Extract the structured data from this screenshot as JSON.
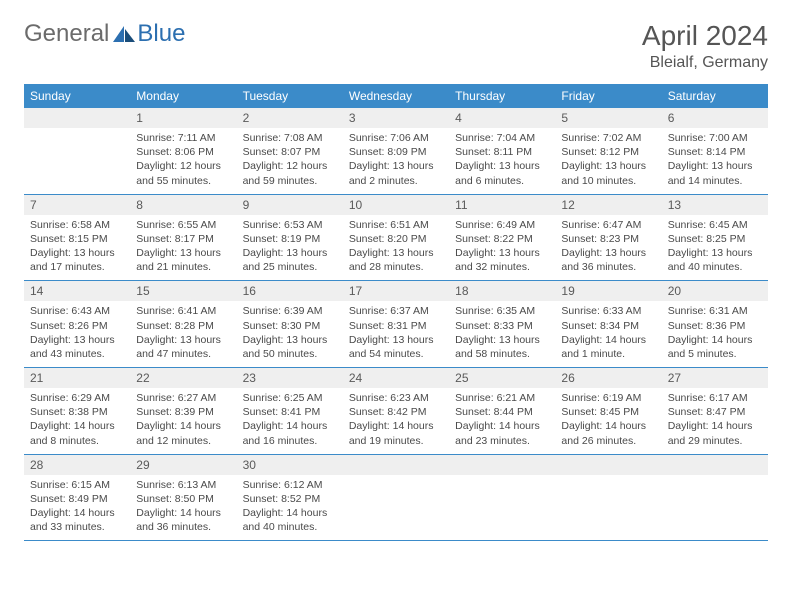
{
  "brand": {
    "general": "General",
    "blue": "Blue"
  },
  "title": "April 2024",
  "location": "Bleialf, Germany",
  "colors": {
    "header_bg": "#3b8bc9",
    "header_text": "#ffffff",
    "daynum_bg": "#efefef",
    "text": "#4a4a4a",
    "border": "#3b8bc9",
    "logo_accent": "#2c6fb0"
  },
  "day_headers": [
    "Sunday",
    "Monday",
    "Tuesday",
    "Wednesday",
    "Thursday",
    "Friday",
    "Saturday"
  ],
  "weeks": [
    [
      {
        "num": "",
        "sunrise": "",
        "sunset": "",
        "daylight": ""
      },
      {
        "num": "1",
        "sunrise": "Sunrise: 7:11 AM",
        "sunset": "Sunset: 8:06 PM",
        "daylight": "Daylight: 12 hours and 55 minutes."
      },
      {
        "num": "2",
        "sunrise": "Sunrise: 7:08 AM",
        "sunset": "Sunset: 8:07 PM",
        "daylight": "Daylight: 12 hours and 59 minutes."
      },
      {
        "num": "3",
        "sunrise": "Sunrise: 7:06 AM",
        "sunset": "Sunset: 8:09 PM",
        "daylight": "Daylight: 13 hours and 2 minutes."
      },
      {
        "num": "4",
        "sunrise": "Sunrise: 7:04 AM",
        "sunset": "Sunset: 8:11 PM",
        "daylight": "Daylight: 13 hours and 6 minutes."
      },
      {
        "num": "5",
        "sunrise": "Sunrise: 7:02 AM",
        "sunset": "Sunset: 8:12 PM",
        "daylight": "Daylight: 13 hours and 10 minutes."
      },
      {
        "num": "6",
        "sunrise": "Sunrise: 7:00 AM",
        "sunset": "Sunset: 8:14 PM",
        "daylight": "Daylight: 13 hours and 14 minutes."
      }
    ],
    [
      {
        "num": "7",
        "sunrise": "Sunrise: 6:58 AM",
        "sunset": "Sunset: 8:15 PM",
        "daylight": "Daylight: 13 hours and 17 minutes."
      },
      {
        "num": "8",
        "sunrise": "Sunrise: 6:55 AM",
        "sunset": "Sunset: 8:17 PM",
        "daylight": "Daylight: 13 hours and 21 minutes."
      },
      {
        "num": "9",
        "sunrise": "Sunrise: 6:53 AM",
        "sunset": "Sunset: 8:19 PM",
        "daylight": "Daylight: 13 hours and 25 minutes."
      },
      {
        "num": "10",
        "sunrise": "Sunrise: 6:51 AM",
        "sunset": "Sunset: 8:20 PM",
        "daylight": "Daylight: 13 hours and 28 minutes."
      },
      {
        "num": "11",
        "sunrise": "Sunrise: 6:49 AM",
        "sunset": "Sunset: 8:22 PM",
        "daylight": "Daylight: 13 hours and 32 minutes."
      },
      {
        "num": "12",
        "sunrise": "Sunrise: 6:47 AM",
        "sunset": "Sunset: 8:23 PM",
        "daylight": "Daylight: 13 hours and 36 minutes."
      },
      {
        "num": "13",
        "sunrise": "Sunrise: 6:45 AM",
        "sunset": "Sunset: 8:25 PM",
        "daylight": "Daylight: 13 hours and 40 minutes."
      }
    ],
    [
      {
        "num": "14",
        "sunrise": "Sunrise: 6:43 AM",
        "sunset": "Sunset: 8:26 PM",
        "daylight": "Daylight: 13 hours and 43 minutes."
      },
      {
        "num": "15",
        "sunrise": "Sunrise: 6:41 AM",
        "sunset": "Sunset: 8:28 PM",
        "daylight": "Daylight: 13 hours and 47 minutes."
      },
      {
        "num": "16",
        "sunrise": "Sunrise: 6:39 AM",
        "sunset": "Sunset: 8:30 PM",
        "daylight": "Daylight: 13 hours and 50 minutes."
      },
      {
        "num": "17",
        "sunrise": "Sunrise: 6:37 AM",
        "sunset": "Sunset: 8:31 PM",
        "daylight": "Daylight: 13 hours and 54 minutes."
      },
      {
        "num": "18",
        "sunrise": "Sunrise: 6:35 AM",
        "sunset": "Sunset: 8:33 PM",
        "daylight": "Daylight: 13 hours and 58 minutes."
      },
      {
        "num": "19",
        "sunrise": "Sunrise: 6:33 AM",
        "sunset": "Sunset: 8:34 PM",
        "daylight": "Daylight: 14 hours and 1 minute."
      },
      {
        "num": "20",
        "sunrise": "Sunrise: 6:31 AM",
        "sunset": "Sunset: 8:36 PM",
        "daylight": "Daylight: 14 hours and 5 minutes."
      }
    ],
    [
      {
        "num": "21",
        "sunrise": "Sunrise: 6:29 AM",
        "sunset": "Sunset: 8:38 PM",
        "daylight": "Daylight: 14 hours and 8 minutes."
      },
      {
        "num": "22",
        "sunrise": "Sunrise: 6:27 AM",
        "sunset": "Sunset: 8:39 PM",
        "daylight": "Daylight: 14 hours and 12 minutes."
      },
      {
        "num": "23",
        "sunrise": "Sunrise: 6:25 AM",
        "sunset": "Sunset: 8:41 PM",
        "daylight": "Daylight: 14 hours and 16 minutes."
      },
      {
        "num": "24",
        "sunrise": "Sunrise: 6:23 AM",
        "sunset": "Sunset: 8:42 PM",
        "daylight": "Daylight: 14 hours and 19 minutes."
      },
      {
        "num": "25",
        "sunrise": "Sunrise: 6:21 AM",
        "sunset": "Sunset: 8:44 PM",
        "daylight": "Daylight: 14 hours and 23 minutes."
      },
      {
        "num": "26",
        "sunrise": "Sunrise: 6:19 AM",
        "sunset": "Sunset: 8:45 PM",
        "daylight": "Daylight: 14 hours and 26 minutes."
      },
      {
        "num": "27",
        "sunrise": "Sunrise: 6:17 AM",
        "sunset": "Sunset: 8:47 PM",
        "daylight": "Daylight: 14 hours and 29 minutes."
      }
    ],
    [
      {
        "num": "28",
        "sunrise": "Sunrise: 6:15 AM",
        "sunset": "Sunset: 8:49 PM",
        "daylight": "Daylight: 14 hours and 33 minutes."
      },
      {
        "num": "29",
        "sunrise": "Sunrise: 6:13 AM",
        "sunset": "Sunset: 8:50 PM",
        "daylight": "Daylight: 14 hours and 36 minutes."
      },
      {
        "num": "30",
        "sunrise": "Sunrise: 6:12 AM",
        "sunset": "Sunset: 8:52 PM",
        "daylight": "Daylight: 14 hours and 40 minutes."
      },
      {
        "num": "",
        "sunrise": "",
        "sunset": "",
        "daylight": ""
      },
      {
        "num": "",
        "sunrise": "",
        "sunset": "",
        "daylight": ""
      },
      {
        "num": "",
        "sunrise": "",
        "sunset": "",
        "daylight": ""
      },
      {
        "num": "",
        "sunrise": "",
        "sunset": "",
        "daylight": ""
      }
    ]
  ]
}
